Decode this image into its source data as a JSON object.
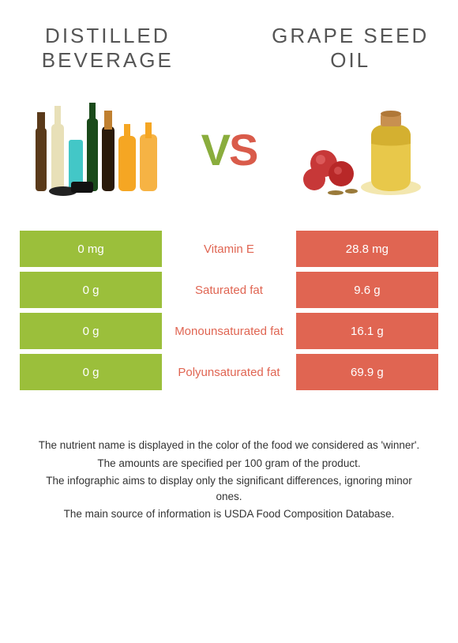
{
  "left_title": "DISTILLED BEVERAGE",
  "right_title": "GRAPE SEED OIL",
  "vs_text": {
    "v": "V",
    "s": "S"
  },
  "colors": {
    "left_bar": "#9bbf3b",
    "right_bar": "#e06552",
    "mid_text_winner_right": "#e06552",
    "mid_text_winner_left": "#9bbf3b"
  },
  "rows": [
    {
      "left": "0 mg",
      "label": "Vitamin E",
      "right": "28.8 mg",
      "winner": "right"
    },
    {
      "left": "0 g",
      "label": "Saturated fat",
      "right": "9.6 g",
      "winner": "right"
    },
    {
      "left": "0 g",
      "label": "Monounsaturated fat",
      "right": "16.1 g",
      "winner": "right"
    },
    {
      "left": "0 g",
      "label": "Polyunsaturated fat",
      "right": "69.9 g",
      "winner": "right"
    }
  ],
  "footnotes": [
    "The nutrient name is displayed in the color of the food we considered as 'winner'.",
    "The amounts are specified per 100 gram of the product.",
    "The infographic aims to display only the significant differences, ignoring minor ones.",
    "The main source of information is USDA Food Composition Database."
  ]
}
